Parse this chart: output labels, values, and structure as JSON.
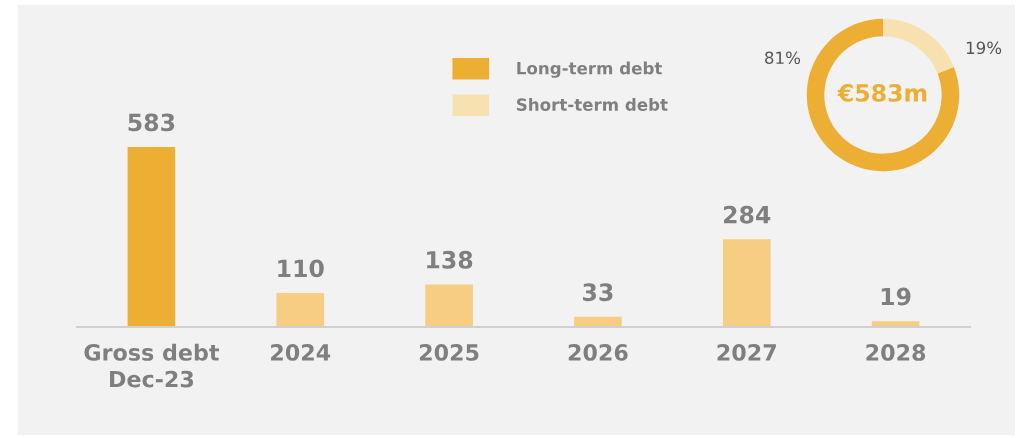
{
  "chart_data": [
    {
      "type": "bar",
      "categories": [
        "Gross debt\nDec-23",
        "2024",
        "2025",
        "2026",
        "2027",
        "2028"
      ],
      "values": [
        583,
        110,
        138,
        33,
        284,
        19
      ],
      "colors": [
        "#ecae33",
        "#f6cd82",
        "#f6cd82",
        "#f6cd82",
        "#f6cd82",
        "#f6cd82"
      ],
      "data_labels": true,
      "grid": false
    },
    {
      "type": "donut",
      "categories": [
        "Long-term debt",
        "Short-term debt"
      ],
      "values": [
        81,
        19
      ],
      "colors": [
        "#ecae33",
        "#f8e1b0"
      ],
      "value_labels": [
        "81%",
        "19%"
      ],
      "annotations": [
        "€583m"
      ],
      "legend": "left"
    }
  ]
}
